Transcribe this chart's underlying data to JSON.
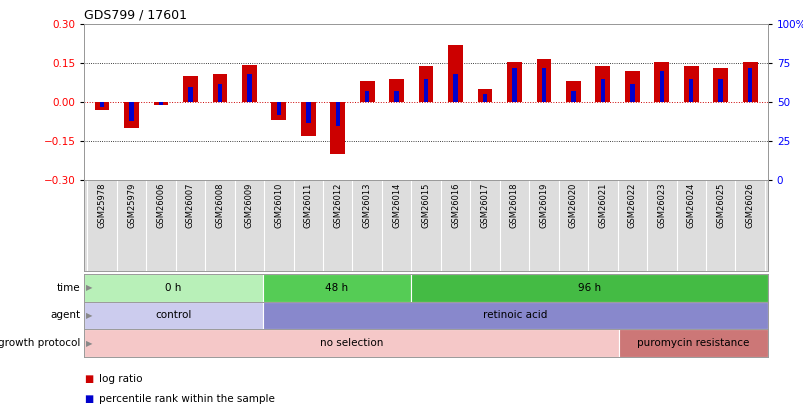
{
  "title": "GDS799 / 17601",
  "samples": [
    "GSM25978",
    "GSM25979",
    "GSM26006",
    "GSM26007",
    "GSM26008",
    "GSM26009",
    "GSM26010",
    "GSM26011",
    "GSM26012",
    "GSM26013",
    "GSM26014",
    "GSM26015",
    "GSM26016",
    "GSM26017",
    "GSM26018",
    "GSM26019",
    "GSM26020",
    "GSM26021",
    "GSM26022",
    "GSM26023",
    "GSM26024",
    "GSM26025",
    "GSM26026"
  ],
  "log_ratio": [
    -0.03,
    -0.1,
    -0.01,
    0.1,
    0.11,
    0.145,
    -0.07,
    -0.13,
    -0.2,
    0.08,
    0.09,
    0.14,
    0.22,
    0.05,
    0.155,
    0.165,
    0.08,
    0.14,
    0.12,
    0.155,
    0.14,
    0.13,
    0.155
  ],
  "percentile": [
    47,
    38,
    48,
    60,
    62,
    68,
    42,
    37,
    35,
    57,
    57,
    65,
    68,
    55,
    72,
    72,
    57,
    65,
    62,
    70,
    65,
    65,
    72
  ],
  "bar_color": "#cc0000",
  "pct_color": "#0000cc",
  "dotted_line_y": [
    0.15,
    -0.15
  ],
  "zero_line_color": "#cc0000",
  "ylim_left": [
    -0.3,
    0.3
  ],
  "ylim_right": [
    0,
    100
  ],
  "yticks_left": [
    -0.3,
    -0.15,
    0.0,
    0.15,
    0.3
  ],
  "yticks_right": [
    0,
    25,
    50,
    75,
    100
  ],
  "time_segments": [
    {
      "text": "0 h",
      "start": 0,
      "end": 5,
      "color": "#b8f0b8"
    },
    {
      "text": "48 h",
      "start": 6,
      "end": 10,
      "color": "#55cc55"
    },
    {
      "text": "96 h",
      "start": 11,
      "end": 22,
      "color": "#44bb44"
    }
  ],
  "agent_segments": [
    {
      "text": "control",
      "start": 0,
      "end": 5,
      "color": "#ccccee"
    },
    {
      "text": "retinoic acid",
      "start": 6,
      "end": 22,
      "color": "#8888cc"
    }
  ],
  "protocol_segments": [
    {
      "text": "no selection",
      "start": 0,
      "end": 17,
      "color": "#f5c8c8"
    },
    {
      "text": "puromycin resistance",
      "start": 18,
      "end": 22,
      "color": "#cc7777"
    }
  ],
  "row_labels": [
    "time",
    "agent",
    "growth protocol"
  ],
  "legend_items": [
    {
      "label": "log ratio",
      "color": "#cc0000"
    },
    {
      "label": "percentile rank within the sample",
      "color": "#0000cc"
    }
  ],
  "background_color": "#ffffff",
  "xtick_bg": "#dddddd"
}
